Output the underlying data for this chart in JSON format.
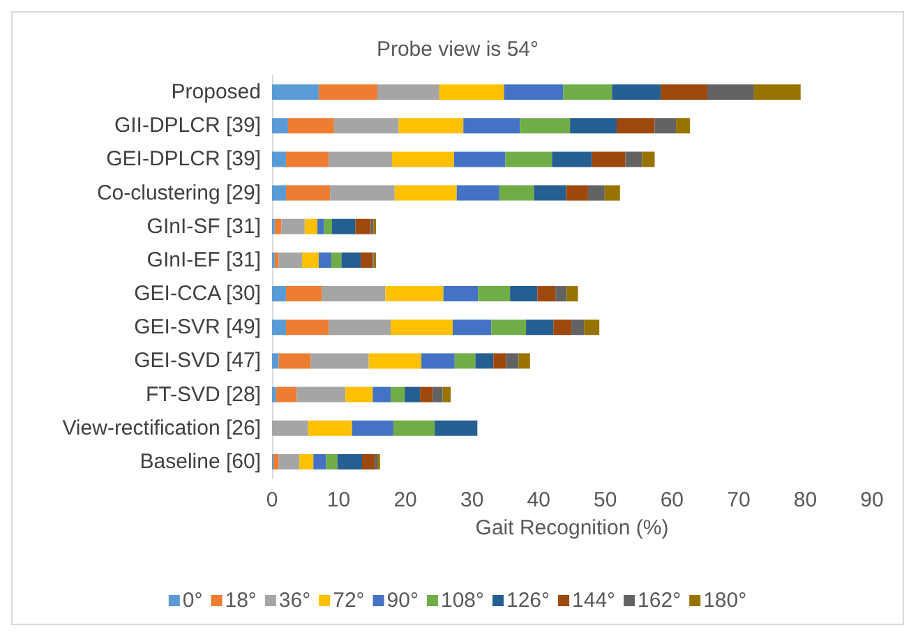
{
  "chart_data": {
    "type": "bar",
    "orientation": "horizontal",
    "stacked": true,
    "title": "Probe view is 54°",
    "xlabel": "Gait Recognition (%)",
    "categories": [
      "Proposed",
      "GII-DPLCR [39]",
      "GEI-DPLCR [39]",
      "Co-clustering [29]",
      "GInI-SF [31]",
      "GInI-EF [31]",
      "GEI-CCA [30]",
      "GEI-SVR [49]",
      "GEI-SVD [47]",
      "FT-SVD [28]",
      "View-rectification [26]",
      "Baseline [60]"
    ],
    "xlim": [
      0,
      90
    ],
    "xticks": [
      0,
      10,
      20,
      30,
      40,
      50,
      60,
      70,
      80,
      90
    ],
    "grid": false,
    "legend": "bottom",
    "series": [
      {
        "name": "0°",
        "color": "#5b9bd5",
        "values": [
          7.0,
          2.4,
          2.1,
          2.1,
          0.4,
          0.4,
          2.1,
          2.1,
          1.0,
          0.6,
          null,
          0.2
        ]
      },
      {
        "name": "18°",
        "color": "#ed7d31",
        "values": [
          8.8,
          6.9,
          6.4,
          6.6,
          1.0,
          0.6,
          5.4,
          6.4,
          4.8,
          3.1,
          null,
          0.8
        ]
      },
      {
        "name": "36°",
        "color": "#a5a5a5",
        "values": [
          9.3,
          9.7,
          9.5,
          9.7,
          3.5,
          3.5,
          9.5,
          9.3,
          8.7,
          7.3,
          5.4,
          3.1
        ]
      },
      {
        "name": "72°",
        "color": "#ffc000",
        "values": [
          9.7,
          9.7,
          9.3,
          9.3,
          1.9,
          2.5,
          8.7,
          9.3,
          7.9,
          4.1,
          6.6,
          2.1
        ]
      },
      {
        "name": "90°",
        "color": "#4472c4",
        "values": [
          8.9,
          8.5,
          7.7,
          6.4,
          1.0,
          1.9,
          5.2,
          5.8,
          5.0,
          2.7,
          6.2,
          1.9
        ]
      },
      {
        "name": "108°",
        "color": "#70ad47",
        "values": [
          7.3,
          7.5,
          7.0,
          5.2,
          1.2,
          1.5,
          4.8,
          5.2,
          3.1,
          2.1,
          6.2,
          1.7
        ]
      },
      {
        "name": "126°",
        "color": "#255e91",
        "values": [
          7.3,
          7.0,
          6.0,
          4.8,
          3.5,
          2.9,
          4.1,
          4.1,
          2.7,
          2.3,
          6.4,
          3.7
        ]
      },
      {
        "name": "144°",
        "color": "#9e480e",
        "values": [
          7.0,
          5.7,
          5.0,
          3.3,
          2.3,
          1.7,
          2.7,
          2.7,
          1.9,
          1.9,
          null,
          1.9
        ]
      },
      {
        "name": "162°",
        "color": "#636363",
        "values": [
          7.0,
          3.2,
          2.5,
          2.5,
          0.4,
          0.2,
          1.7,
          1.9,
          1.9,
          1.5,
          null,
          0.4
        ]
      },
      {
        "name": "180°",
        "color": "#997300",
        "values": [
          7.0,
          2.1,
          1.9,
          2.3,
          0.4,
          0.4,
          1.7,
          2.3,
          1.7,
          1.2,
          null,
          0.4
        ]
      }
    ]
  }
}
